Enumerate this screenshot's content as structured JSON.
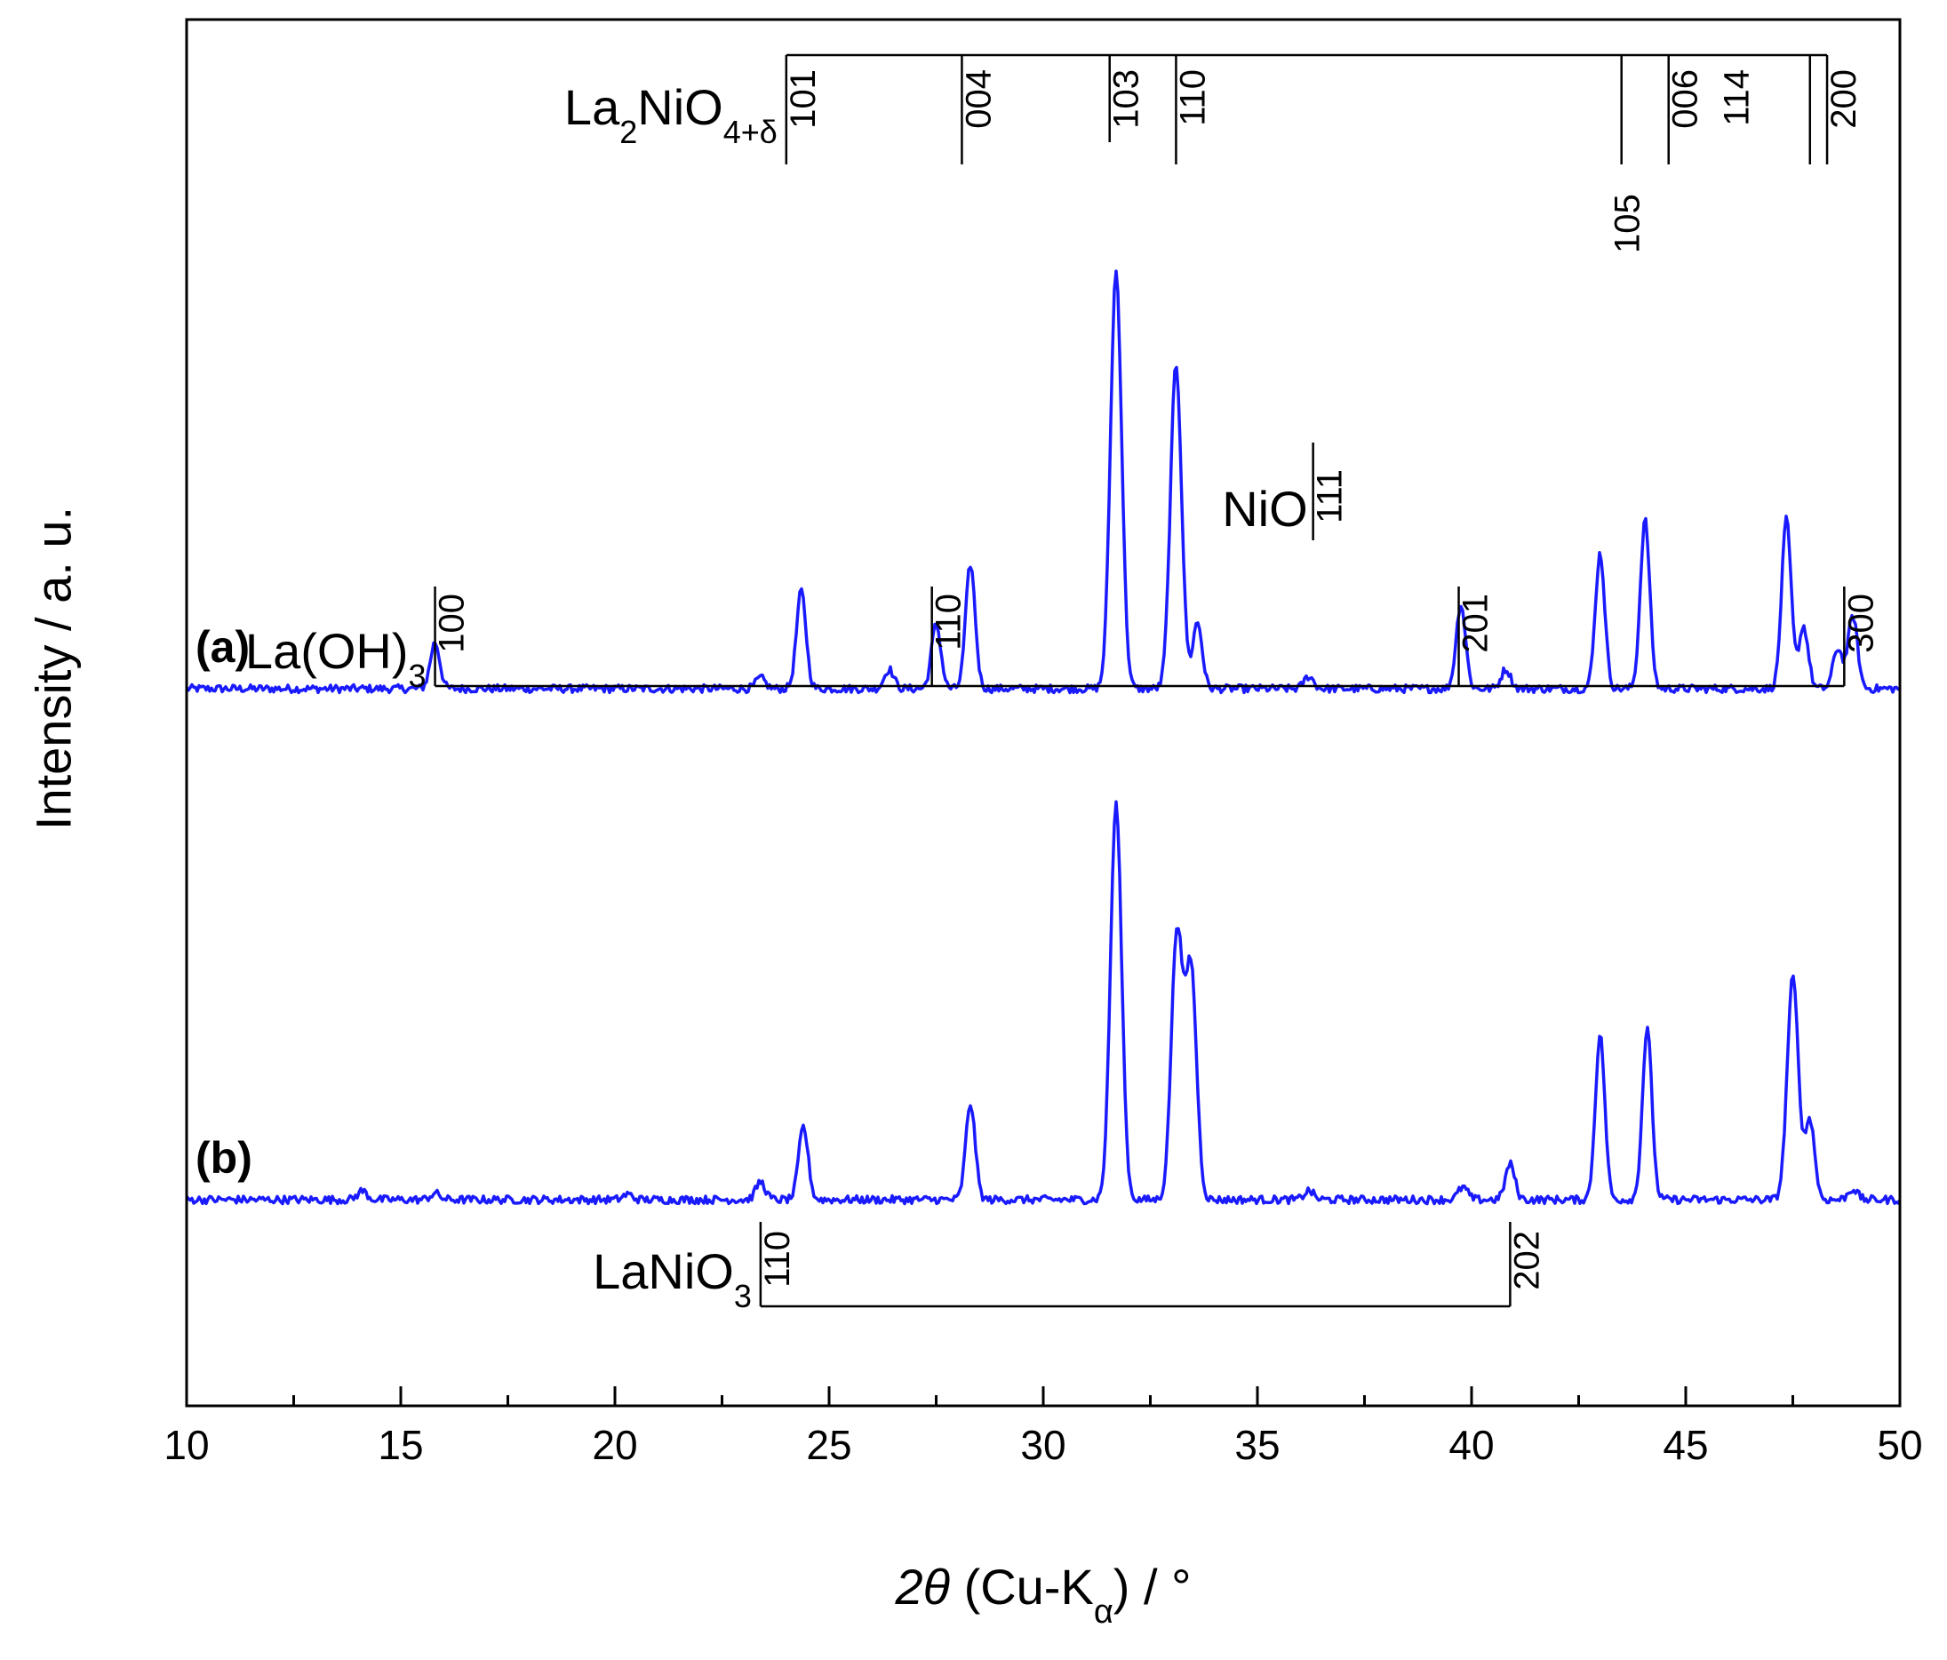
{
  "chart_data": {
    "type": "line",
    "xlabel": "2θ (Cu-Kα) / °",
    "ylabel": "Intensity / a. u.",
    "xlim": [
      10,
      50
    ],
    "x_ticks": [
      "10",
      "15",
      "20",
      "25",
      "30",
      "35",
      "40",
      "45",
      "50"
    ],
    "grid": false,
    "line_color": "#1a1aff",
    "series": [
      {
        "name": "(a)",
        "offset": 575,
        "peaks": [
          {
            "x": 15.8,
            "y": 52
          },
          {
            "x": 23.4,
            "y": 12
          },
          {
            "x": 24.35,
            "y": 110
          },
          {
            "x": 26.4,
            "y": 22
          },
          {
            "x": 27.5,
            "y": 72
          },
          {
            "x": 28.3,
            "y": 140
          },
          {
            "x": 31.7,
            "y": 470
          },
          {
            "x": 33.1,
            "y": 365
          },
          {
            "x": 33.6,
            "y": 75
          },
          {
            "x": 36.2,
            "y": 14
          },
          {
            "x": 39.75,
            "y": 95
          },
          {
            "x": 40.8,
            "y": 22
          },
          {
            "x": 43.0,
            "y": 152
          },
          {
            "x": 44.05,
            "y": 190
          },
          {
            "x": 47.35,
            "y": 190
          },
          {
            "x": 47.75,
            "y": 70
          },
          {
            "x": 48.55,
            "y": 45
          },
          {
            "x": 48.9,
            "y": 82
          }
        ]
      },
      {
        "name": "(b)",
        "offset": 0,
        "peaks": [
          {
            "x": 14.1,
            "y": 10
          },
          {
            "x": 15.8,
            "y": 7
          },
          {
            "x": 20.3,
            "y": 6
          },
          {
            "x": 23.4,
            "y": 20
          },
          {
            "x": 24.4,
            "y": 82
          },
          {
            "x": 28.3,
            "y": 108
          },
          {
            "x": 31.7,
            "y": 445
          },
          {
            "x": 33.12,
            "y": 300
          },
          {
            "x": 33.45,
            "y": 260
          },
          {
            "x": 36.2,
            "y": 10
          },
          {
            "x": 39.8,
            "y": 14
          },
          {
            "x": 40.9,
            "y": 40
          },
          {
            "x": 43.0,
            "y": 185
          },
          {
            "x": 44.1,
            "y": 192
          },
          {
            "x": 47.5,
            "y": 250
          },
          {
            "x": 47.9,
            "y": 90
          },
          {
            "x": 48.9,
            "y": 12
          }
        ]
      }
    ],
    "reference_phases": [
      {
        "label": "La2NiO4+δ",
        "base": "La",
        "sub1": "2",
        "mid": "NiO",
        "sub2": "4+δ",
        "lines": [
          {
            "x": 24.0,
            "hkl": "101"
          },
          {
            "x": 28.1,
            "hkl": "004"
          },
          {
            "x": 31.55,
            "hkl": "103"
          },
          {
            "x": 33.1,
            "hkl": "110"
          },
          {
            "x": 43.5,
            "hkl": "105"
          },
          {
            "x": 44.6,
            "hkl": "006"
          },
          {
            "x": 47.9,
            "hkl": "114"
          },
          {
            "x": 48.3,
            "hkl": "200"
          }
        ]
      },
      {
        "label": "NiO",
        "lines": [
          {
            "x": 36.3,
            "hkl": "111"
          }
        ]
      },
      {
        "label": "La(OH)3",
        "base": "La(OH)",
        "sub1": "3",
        "lines": [
          {
            "x": 15.8,
            "hkl": "100"
          },
          {
            "x": 27.4,
            "hkl": "110"
          },
          {
            "x": 39.7,
            "hkl": "201"
          },
          {
            "x": 48.7,
            "hkl": "300"
          }
        ]
      },
      {
        "label": "LaNiO3",
        "base": "LaNiO",
        "sub1": "3",
        "lines": [
          {
            "x": 23.4,
            "hkl": "110"
          },
          {
            "x": 40.9,
            "hkl": "202"
          }
        ]
      }
    ]
  }
}
